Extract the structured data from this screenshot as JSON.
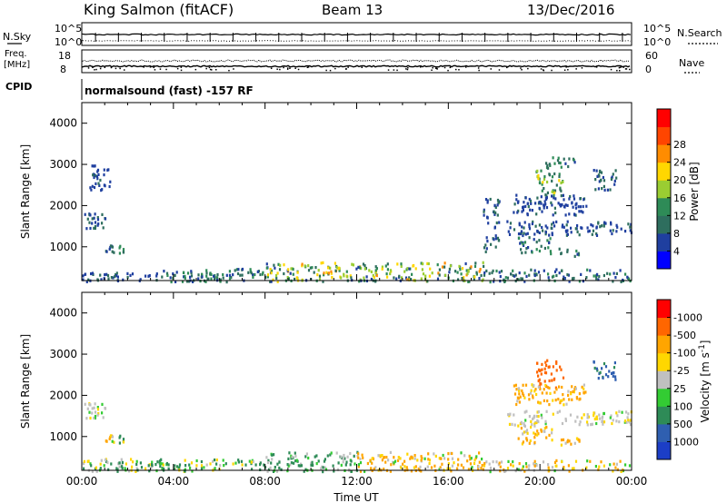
{
  "header": {
    "station": "King Salmon (fitACF)",
    "beam": "Beam 13",
    "date": "13/Dec/2016"
  },
  "strips": {
    "nsky_label": "N.Sky",
    "nsearch_label": "N.Search",
    "nsky_ticks": [
      "10^5",
      "10^0"
    ],
    "nsearch_ticks": [
      "10^5",
      "10^0"
    ],
    "freq_label_1": "Freq.",
    "freq_label_2": "[MHz]",
    "freq_ticks": [
      "18",
      "8"
    ],
    "nave_label": "Nave",
    "nave_ticks": [
      "60",
      "0"
    ],
    "cpid_label": "CPID",
    "cpid_text": "normalsound (fast) -157 RF"
  },
  "chart_data": [
    {
      "type": "heatmap",
      "name": "power-panel",
      "ylabel": "Slant Range [km]",
      "xlabel": "",
      "ylim": [
        180,
        4500
      ],
      "yticks": [
        1000,
        2000,
        3000,
        4000
      ],
      "xlim": [
        0,
        24
      ],
      "colorbar": {
        "label": "Power [dB]",
        "ticks": [
          4,
          8,
          12,
          16,
          20,
          24,
          28
        ],
        "range": [
          0,
          32
        ],
        "colors": [
          "#0000ff",
          "#1f3f9f",
          "#2e6e5e",
          "#2e8b57",
          "#9acd32",
          "#ffd700",
          "#ff8c00",
          "#ff4500",
          "#ff0000"
        ]
      },
      "echo_regions": [
        {
          "t": [
            0.1,
            1.0
          ],
          "r": [
            1450,
            1850
          ],
          "level": [
            6,
            10
          ]
        },
        {
          "t": [
            1.0,
            1.9
          ],
          "r": [
            850,
            1100
          ],
          "level": [
            6,
            14
          ]
        },
        {
          "t": [
            0.3,
            1.2
          ],
          "r": [
            2400,
            3000
          ],
          "level": [
            6,
            9
          ]
        },
        {
          "t": [
            0.0,
            3.5
          ],
          "r": [
            180,
            400
          ],
          "level": [
            4,
            10
          ]
        },
        {
          "t": [
            3.5,
            8.0
          ],
          "r": [
            180,
            500
          ],
          "level": [
            4,
            16
          ]
        },
        {
          "t": [
            8.0,
            17.5
          ],
          "r": [
            180,
            650
          ],
          "level": [
            6,
            26
          ]
        },
        {
          "t": [
            17.5,
            24.0
          ],
          "r": [
            180,
            480
          ],
          "level": [
            4,
            14
          ]
        },
        {
          "t": [
            17.5,
            18.2
          ],
          "r": [
            900,
            2200
          ],
          "level": [
            6,
            10
          ]
        },
        {
          "t": [
            18.5,
            24.0
          ],
          "r": [
            1300,
            1650
          ],
          "level": [
            4,
            10
          ]
        },
        {
          "t": [
            19.0,
            20.5
          ],
          "r": [
            850,
            1300
          ],
          "level": [
            6,
            16
          ]
        },
        {
          "t": [
            20.8,
            21.8
          ],
          "r": [
            800,
            1000
          ],
          "level": [
            6,
            14
          ]
        },
        {
          "t": [
            19.8,
            21.0
          ],
          "r": [
            2200,
            2900
          ],
          "level": [
            8,
            24
          ]
        },
        {
          "t": [
            20.2,
            21.5
          ],
          "r": [
            2900,
            3200
          ],
          "level": [
            6,
            14
          ]
        },
        {
          "t": [
            22.3,
            23.3
          ],
          "r": [
            2400,
            2900
          ],
          "level": [
            6,
            10
          ]
        },
        {
          "t": [
            18.8,
            22.0
          ],
          "r": [
            1800,
            2300
          ],
          "level": [
            4,
            9
          ]
        }
      ]
    },
    {
      "type": "heatmap",
      "name": "velocity-panel",
      "ylabel": "Slant Range [km]",
      "xlabel": "Time UT",
      "ylim": [
        180,
        4500
      ],
      "yticks": [
        1000,
        2000,
        3000,
        4000
      ],
      "xlim": [
        0,
        24
      ],
      "xticks": [
        "00:00",
        "04:00",
        "08:00",
        "12:00",
        "16:00",
        "20:00",
        "00:00"
      ],
      "colorbar": {
        "label": "Velocity [m s^-1]",
        "ticks": [
          "1000",
          "500",
          "100",
          "25",
          "-25",
          "-100",
          "-500",
          "-1000"
        ],
        "colors": [
          "#1c3ec6",
          "#2f5fb0",
          "#2e8b57",
          "#33cc33",
          "#c0c0c0",
          "#ffd700",
          "#ffa500",
          "#ff6600",
          "#ff0000"
        ]
      },
      "echo_regions": [
        {
          "t": [
            0.1,
            1.0
          ],
          "r": [
            1450,
            1850
          ],
          "v": [
            -40,
            40
          ]
        },
        {
          "t": [
            1.0,
            1.9
          ],
          "r": [
            850,
            1100
          ],
          "v": [
            -200,
            200
          ]
        },
        {
          "t": [
            0.0,
            8.0
          ],
          "r": [
            180,
            480
          ],
          "v": [
            -60,
            150
          ]
        },
        {
          "t": [
            8.0,
            12.0
          ],
          "r": [
            180,
            650
          ],
          "v": [
            -20,
            200
          ]
        },
        {
          "t": [
            12.0,
            17.5
          ],
          "r": [
            180,
            650
          ],
          "v": [
            -200,
            60
          ]
        },
        {
          "t": [
            17.5,
            24.0
          ],
          "r": [
            180,
            450
          ],
          "v": [
            -150,
            60
          ]
        },
        {
          "t": [
            18.5,
            24.0
          ],
          "r": [
            1300,
            1650
          ],
          "v": [
            -40,
            30
          ]
        },
        {
          "t": [
            19.0,
            20.5
          ],
          "r": [
            850,
            1300
          ],
          "v": [
            -120,
            30
          ]
        },
        {
          "t": [
            20.8,
            21.8
          ],
          "r": [
            800,
            1000
          ],
          "v": [
            -150,
            0
          ]
        },
        {
          "t": [
            19.8,
            21.0
          ],
          "r": [
            2200,
            2900
          ],
          "v": [
            -700,
            -300
          ]
        },
        {
          "t": [
            22.3,
            23.3
          ],
          "r": [
            2400,
            2900
          ],
          "v": [
            200,
            700
          ]
        },
        {
          "t": [
            18.8,
            22.0
          ],
          "r": [
            1800,
            2300
          ],
          "v": [
            -200,
            0
          ]
        }
      ]
    }
  ]
}
